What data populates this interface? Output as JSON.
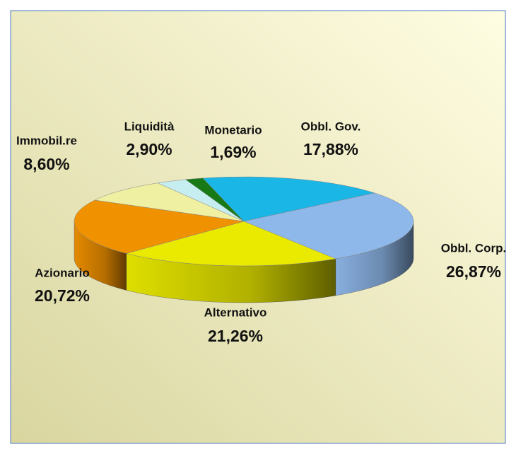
{
  "chart_data": {
    "type": "pie",
    "categories": [
      "Obbl. Gov.",
      "Obbl. Corp.",
      "Alternativo",
      "Azionario",
      "Immobil.re",
      "Liquidità",
      "Monetario"
    ],
    "values": [
      17.88,
      26.87,
      21.26,
      20.72,
      8.6,
      2.9,
      1.69
    ],
    "value_labels": [
      "17,88%",
      "26,87%",
      "21,26%",
      "20,72%",
      "8,60%",
      "2,90%",
      "1,69%"
    ],
    "colors": [
      "#19b6e6",
      "#8fb8ea",
      "#eaea00",
      "#f09100",
      "#f0f0a2",
      "#c6eef0",
      "#177a17"
    ]
  }
}
